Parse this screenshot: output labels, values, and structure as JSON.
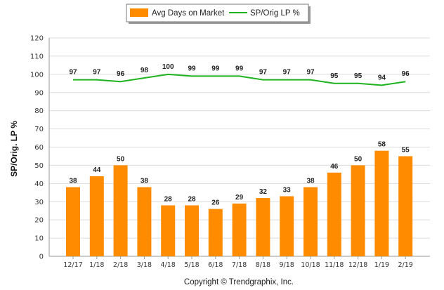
{
  "chart_data": {
    "type": "bar",
    "categories": [
      "12/17",
      "1/18",
      "2/18",
      "3/18",
      "4/18",
      "5/18",
      "6/18",
      "7/18",
      "8/18",
      "9/18",
      "10/18",
      "11/18",
      "12/18",
      "1/19",
      "2/19"
    ],
    "series": [
      {
        "name": "Avg Days on Market",
        "type": "bar",
        "color": "#ff8c00",
        "values": [
          38,
          44,
          50,
          38,
          28,
          28,
          26,
          29,
          32,
          33,
          38,
          46,
          50,
          58,
          55
        ]
      },
      {
        "name": "SP/Orig LP %",
        "type": "line",
        "color": "#1fb31f",
        "values": [
          97,
          97,
          96,
          98,
          100,
          99,
          99,
          99,
          97,
          97,
          97,
          95,
          95,
          94,
          96
        ]
      }
    ],
    "ylabel": "SP/Orig. LP %",
    "ylim": [
      0,
      120
    ],
    "yticks": [
      0,
      10,
      20,
      30,
      40,
      50,
      60,
      70,
      80,
      90,
      100,
      110,
      120
    ],
    "grid": true,
    "legend_position": "top-center"
  },
  "footer": {
    "copyright": "Copyright © Trendgraphix, Inc."
  }
}
